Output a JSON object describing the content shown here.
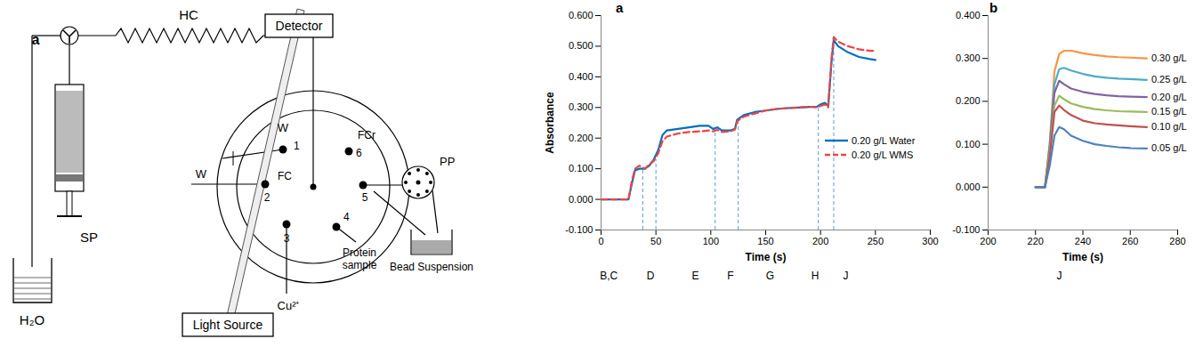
{
  "diagram": {
    "label": "a",
    "texts": {
      "hc": "HC",
      "detector": "Detector",
      "light_source": "Light Source",
      "water": "H₂O",
      "syringe_pump": "SP",
      "waste_1": "W",
      "waste_2": "W",
      "flow_cell": "FC",
      "flow_cell_reference": "FCr",
      "copper": "Cu²⁺",
      "protein": "Protein sample",
      "peristaltic_pump": "PP",
      "beads": "Bead Suspension"
    },
    "ports": [
      "1",
      "2",
      "3",
      "4",
      "5",
      "6"
    ]
  },
  "chart_data": [
    {
      "type": "line",
      "title": "a",
      "x_label": "Time (s)",
      "y_label": "Absorbance",
      "x": [
        0,
        25,
        28,
        31,
        35,
        40,
        44,
        48,
        52,
        56,
        60,
        70,
        80,
        90,
        98,
        102,
        106,
        110,
        118,
        122,
        124,
        130,
        140,
        150,
        160,
        170,
        180,
        190,
        197,
        200,
        204,
        207,
        210,
        212,
        216,
        225,
        235,
        245,
        250
      ],
      "series": [
        {
          "name": "0.20 g/L Water",
          "color": "#0070C0",
          "line_style": "solid",
          "values": [
            0,
            0,
            0.05,
            0.095,
            0.1,
            0.1,
            0.11,
            0.13,
            0.16,
            0.21,
            0.225,
            0.23,
            0.235,
            0.24,
            0.24,
            0.23,
            0.235,
            0.225,
            0.225,
            0.23,
            0.26,
            0.275,
            0.285,
            0.29,
            0.295,
            0.298,
            0.3,
            0.302,
            0.303,
            0.31,
            0.315,
            0.305,
            0.45,
            0.52,
            0.5,
            0.48,
            0.465,
            0.458,
            0.455
          ]
        },
        {
          "name": "0.20 g/L WMS",
          "color": "#EE4444",
          "line_style": "dashed",
          "values": [
            0,
            0,
            0.06,
            0.1,
            0.11,
            0.1,
            0.115,
            0.125,
            0.15,
            0.19,
            0.205,
            0.215,
            0.22,
            0.222,
            0.225,
            0.222,
            0.227,
            0.22,
            0.222,
            0.228,
            0.255,
            0.27,
            0.28,
            0.29,
            0.295,
            0.298,
            0.3,
            0.302,
            0.3,
            0.305,
            0.31,
            0.3,
            0.46,
            0.53,
            0.515,
            0.5,
            0.49,
            0.485,
            0.485
          ]
        }
      ],
      "xlim": [
        0,
        300
      ],
      "xticks": [
        0,
        50,
        100,
        150,
        200,
        250,
        300
      ],
      "ylim": [
        -0.1,
        0.6
      ],
      "yticks": [
        {
          "value": -0.1,
          "label": "-0.100"
        },
        {
          "value": 0,
          "label": "0.000"
        },
        {
          "value": 0.1,
          "label": "0.100"
        },
        {
          "value": 0.2,
          "label": "0.200"
        },
        {
          "value": 0.3,
          "label": "0.300"
        },
        {
          "value": 0.4,
          "label": "0.400"
        },
        {
          "value": 0.5,
          "label": "0.500"
        },
        {
          "value": 0.6,
          "label": "0.600"
        }
      ],
      "legend": "right",
      "boundaries": [
        38,
        50,
        104,
        125,
        198,
        212
      ],
      "annotations": [
        {
          "text": "B,C",
          "x": 7
        },
        {
          "text": "D",
          "x": 45
        },
        {
          "text": "E",
          "x": 86
        },
        {
          "text": "F",
          "x": 118
        },
        {
          "text": "G",
          "x": 154
        },
        {
          "text": "H",
          "x": 195
        },
        {
          "text": "J",
          "x": 223
        }
      ]
    },
    {
      "type": "line",
      "title": "b",
      "x_label": "Time (s)",
      "x": [
        220,
        224,
        226,
        228,
        230,
        232,
        235,
        240,
        245,
        250,
        255,
        260,
        267
      ],
      "series": [
        {
          "name": "0.30 g/L",
          "color": "#F79646",
          "values": [
            0,
            0,
            0.1,
            0.27,
            0.31,
            0.318,
            0.318,
            0.312,
            0.308,
            0.305,
            0.303,
            0.302,
            0.3
          ]
        },
        {
          "name": "0.25 g/L",
          "color": "#4BACC6",
          "values": [
            0,
            0,
            0.1,
            0.24,
            0.275,
            0.278,
            0.272,
            0.264,
            0.258,
            0.255,
            0.253,
            0.252,
            0.25
          ]
        },
        {
          "name": "0.20 g/L",
          "color": "#8064A2",
          "values": [
            0,
            0,
            0.09,
            0.22,
            0.248,
            0.24,
            0.23,
            0.222,
            0.217,
            0.214,
            0.212,
            0.211,
            0.21
          ]
        },
        {
          "name": "0.15 g/L",
          "color": "#9BBB59",
          "values": [
            0,
            0,
            0.08,
            0.19,
            0.213,
            0.205,
            0.195,
            0.187,
            0.182,
            0.179,
            0.177,
            0.176,
            0.175
          ]
        },
        {
          "name": "0.10 g/L",
          "color": "#C0504D",
          "values": [
            0,
            0,
            0.07,
            0.175,
            0.19,
            0.18,
            0.168,
            0.155,
            0.149,
            0.146,
            0.144,
            0.142,
            0.14
          ]
        },
        {
          "name": "0.05 g/L",
          "color": "#4F81BD",
          "values": [
            0,
            0,
            0.05,
            0.12,
            0.14,
            0.135,
            0.12,
            0.108,
            0.1,
            0.096,
            0.093,
            0.091,
            0.09
          ]
        }
      ],
      "xlim": [
        200,
        280
      ],
      "xticks": [
        200,
        220,
        240,
        260,
        280
      ],
      "ylim": [
        -0.1,
        0.4
      ],
      "yticks": [
        {
          "value": -0.1,
          "label": "-0.100"
        },
        {
          "value": 0,
          "label": "0.000"
        },
        {
          "value": 0.1,
          "label": "0.100"
        },
        {
          "value": 0.2,
          "label": "0.200"
        },
        {
          "value": 0.3,
          "label": "0.300"
        },
        {
          "value": 0.4,
          "label": "0.400"
        }
      ],
      "legend": "inline",
      "annotations": [
        {
          "text": "J",
          "x": 230
        }
      ]
    }
  ]
}
